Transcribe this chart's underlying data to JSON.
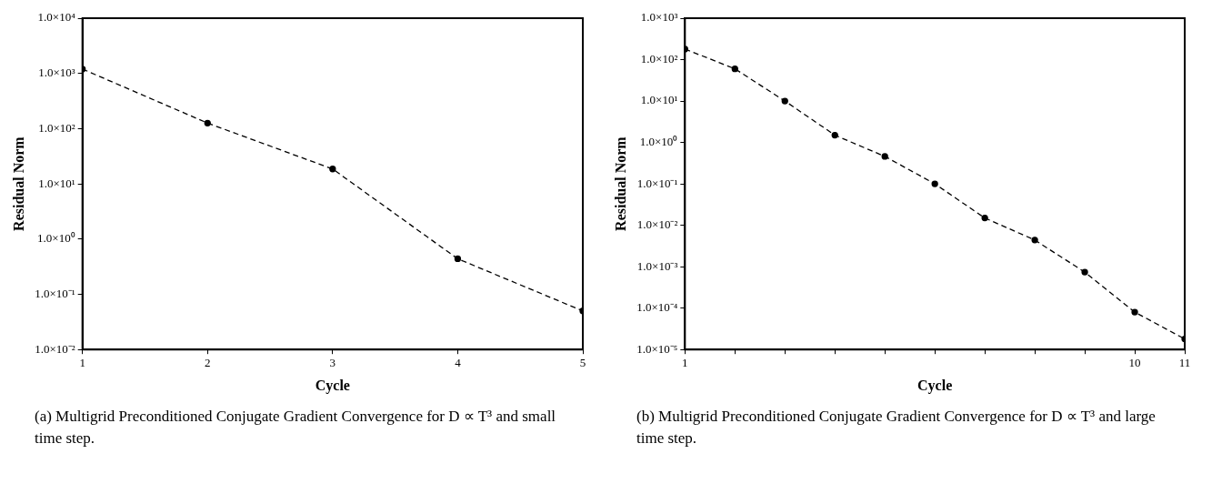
{
  "chart_data": [
    {
      "type": "line",
      "xlabel": "Cycle",
      "ylabel": "Residual Norm",
      "log": "y",
      "marker": "circle",
      "line_style": "dashed",
      "color": "#000000",
      "x": [
        1,
        2,
        3,
        4,
        5
      ],
      "values": [
        1200,
        126,
        18.6,
        0.44,
        0.05
      ],
      "xlim": [
        1,
        5
      ],
      "xticks": [
        1,
        2,
        3,
        4,
        5
      ],
      "ylim": [
        0.01,
        10000
      ],
      "yticks": [
        {
          "value": 0.01,
          "label": "1.0×10⁻²"
        },
        {
          "value": 0.1,
          "label": "1.0×10⁻¹"
        },
        {
          "value": 1,
          "label": "1.0×10⁰"
        },
        {
          "value": 10,
          "label": "1.0×10¹"
        },
        {
          "value": 100,
          "label": "1.0×10²"
        },
        {
          "value": 1000,
          "label": "1.0×10³"
        },
        {
          "value": 10000,
          "label": "1.0×10⁴"
        }
      ],
      "annotations": [
        "(a) Multigrid Preconditioned Conjugate Gradient Convergence for D ∝ T³ and small time step."
      ]
    },
    {
      "type": "line",
      "xlabel": "Cycle",
      "ylabel": "Residual Norm",
      "log": "y",
      "marker": "circle",
      "line_style": "dashed",
      "color": "#000000",
      "x": [
        1,
        2,
        3,
        4,
        5,
        6,
        7,
        8,
        9,
        10,
        11
      ],
      "values": [
        180,
        60,
        10,
        1.5,
        0.46,
        0.1,
        0.015,
        0.0044,
        0.00074,
        8e-05,
        1.8e-05
      ],
      "xlim": [
        1,
        11
      ],
      "xticks": [
        1,
        {
          "value": 2,
          "label": null
        },
        {
          "value": 3,
          "label": null
        },
        {
          "value": 4,
          "label": null
        },
        {
          "value": 5,
          "label": null
        },
        {
          "value": 6,
          "label": null
        },
        {
          "value": 7,
          "label": null
        },
        {
          "value": 8,
          "label": null
        },
        {
          "value": 9,
          "label": null
        },
        10,
        11
      ],
      "ylim": [
        1e-05,
        1000
      ],
      "yticks": [
        {
          "value": 1e-05,
          "label": "1.0×10⁻⁵"
        },
        {
          "value": 0.0001,
          "label": "1.0×10⁻⁴"
        },
        {
          "value": 0.001,
          "label": "1.0×10⁻³"
        },
        {
          "value": 0.01,
          "label": "1.0×10⁻²"
        },
        {
          "value": 0.1,
          "label": "1.0×10⁻¹"
        },
        {
          "value": 1,
          "label": "1.0×10⁰"
        },
        {
          "value": 10,
          "label": "1.0×10¹"
        },
        {
          "value": 100,
          "label": "1.0×10²"
        },
        {
          "value": 1000,
          "label": "1.0×10³"
        }
      ],
      "annotations": [
        "(b) Multigrid Preconditioned Conjugate Gradient Convergence for D ∝ T³ and large time step."
      ]
    }
  ]
}
